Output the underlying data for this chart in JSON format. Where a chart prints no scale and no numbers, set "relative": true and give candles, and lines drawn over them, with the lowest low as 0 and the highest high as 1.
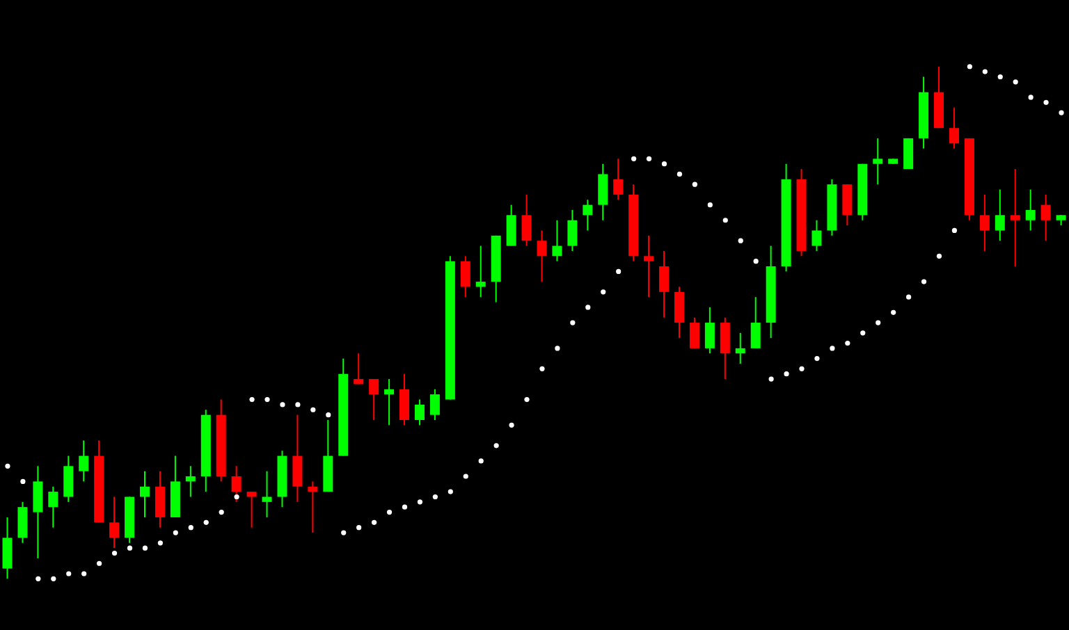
{
  "chart_data": {
    "type": "candlestick",
    "relative": true,
    "marker": "circle",
    "categories": [
      null,
      null,
      null,
      null,
      null,
      null,
      null,
      null,
      null,
      null,
      null,
      null,
      null,
      null,
      null,
      null,
      null,
      null,
      null,
      null,
      null,
      null,
      null,
      null,
      null,
      null,
      null,
      null,
      null,
      null,
      null,
      null,
      null,
      null,
      null,
      null,
      null,
      null,
      null,
      null,
      null,
      null,
      null,
      null,
      null,
      null,
      null,
      null,
      null,
      null,
      null,
      null,
      null,
      null,
      null,
      null,
      null,
      null,
      null,
      null,
      null,
      null,
      null,
      null,
      null,
      null,
      null,
      null,
      null,
      null
    ],
    "ohlc": [
      [
        0.02,
        0.12,
        0,
        0.08
      ],
      [
        0.08,
        0.15,
        0.07,
        0.14
      ],
      [
        0.13,
        0.22,
        0.04,
        0.19
      ],
      [
        0.14,
        0.18,
        0.1,
        0.17
      ],
      [
        0.16,
        0.24,
        0.15,
        0.22
      ],
      [
        0.21,
        0.27,
        0.19,
        0.24
      ],
      [
        0.24,
        0.27,
        0.11,
        0.11
      ],
      [
        0.11,
        0.16,
        0.06,
        0.08
      ],
      [
        0.08,
        0.16,
        0.07,
        0.16
      ],
      [
        0.16,
        0.21,
        0.12,
        0.18
      ],
      [
        0.18,
        0.21,
        0.1,
        0.12
      ],
      [
        0.12,
        0.24,
        0.12,
        0.19
      ],
      [
        0.19,
        0.22,
        0.16,
        0.2
      ],
      [
        0.2,
        0.33,
        0.17,
        0.32
      ],
      [
        0.32,
        0.35,
        0.19,
        0.2
      ],
      [
        0.2,
        0.22,
        0.15,
        0.17
      ],
      [
        0.17,
        0.17,
        0.1,
        0.16
      ],
      [
        0.15,
        0.21,
        0.12,
        0.16
      ],
      [
        0.16,
        0.25,
        0.14,
        0.24
      ],
      [
        0.24,
        0.32,
        0.15,
        0.18
      ],
      [
        0.18,
        0.19,
        0.09,
        0.17
      ],
      [
        0.17,
        0.31,
        0.17,
        0.24
      ],
      [
        0.24,
        0.43,
        0.24,
        0.4
      ],
      [
        0.39,
        0.44,
        0.38,
        0.38
      ],
      [
        0.39,
        0.39,
        0.31,
        0.36
      ],
      [
        0.36,
        0.39,
        0.3,
        0.37
      ],
      [
        0.37,
        0.4,
        0.3,
        0.31
      ],
      [
        0.31,
        0.35,
        0.3,
        0.34
      ],
      [
        0.32,
        0.37,
        0.31,
        0.36
      ],
      [
        0.35,
        0.63,
        0.35,
        0.62
      ],
      [
        0.62,
        0.63,
        0.55,
        0.57
      ],
      [
        0.57,
        0.65,
        0.55,
        0.58
      ],
      [
        0.58,
        0.67,
        0.54,
        0.67
      ],
      [
        0.65,
        0.73,
        0.65,
        0.71
      ],
      [
        0.71,
        0.75,
        0.65,
        0.66
      ],
      [
        0.66,
        0.68,
        0.58,
        0.63
      ],
      [
        0.63,
        0.7,
        0.62,
        0.65
      ],
      [
        0.65,
        0.72,
        0.64,
        0.7
      ],
      [
        0.71,
        0.74,
        0.68,
        0.73
      ],
      [
        0.73,
        0.81,
        0.7,
        0.79
      ],
      [
        0.78,
        0.82,
        0.74,
        0.75
      ],
      [
        0.75,
        0.77,
        0.62,
        0.63
      ],
      [
        0.63,
        0.67,
        0.55,
        0.62
      ],
      [
        0.61,
        0.64,
        0.51,
        0.56
      ],
      [
        0.56,
        0.57,
        0.47,
        0.5
      ],
      [
        0.5,
        0.51,
        0.45,
        0.45
      ],
      [
        0.45,
        0.53,
        0.44,
        0.5
      ],
      [
        0.5,
        0.51,
        0.39,
        0.44
      ],
      [
        0.44,
        0.48,
        0.42,
        0.45
      ],
      [
        0.45,
        0.55,
        0.45,
        0.5
      ],
      [
        0.5,
        0.65,
        0.47,
        0.61
      ],
      [
        0.61,
        0.81,
        0.6,
        0.78
      ],
      [
        0.78,
        0.8,
        0.63,
        0.64
      ],
      [
        0.65,
        0.7,
        0.64,
        0.68
      ],
      [
        0.68,
        0.78,
        0.67,
        0.77
      ],
      [
        0.77,
        0.77,
        0.69,
        0.71
      ],
      [
        0.71,
        0.81,
        0.7,
        0.81
      ],
      [
        0.81,
        0.86,
        0.77,
        0.82
      ],
      [
        0.81,
        0.82,
        0.81,
        0.82
      ],
      [
        0.8,
        0.86,
        0.8,
        0.86
      ],
      [
        0.86,
        0.98,
        0.84,
        0.95
      ],
      [
        0.95,
        1.0,
        0.88,
        0.88
      ],
      [
        0.88,
        0.92,
        0.84,
        0.85
      ],
      [
        0.86,
        0.86,
        0.7,
        0.71
      ],
      [
        0.71,
        0.75,
        0.64,
        0.68
      ],
      [
        0.68,
        0.76,
        0.66,
        0.71
      ],
      [
        0.71,
        0.8,
        0.61,
        0.7
      ],
      [
        0.7,
        0.76,
        0.68,
        0.72
      ],
      [
        0.73,
        0.75,
        0.66,
        0.7
      ],
      [
        0.7,
        0.71,
        0.69,
        0.71
      ]
    ],
    "colors": [
      "#00ff00",
      "#00ff00",
      "#00ff00",
      "#00ff00",
      "#00ff00",
      "#00ff00",
      "#ff0000",
      "#ff0000",
      "#00ff00",
      "#00ff00",
      "#ff0000",
      "#00ff00",
      "#00ff00",
      "#00ff00",
      "#ff0000",
      "#ff0000",
      "#ff0000",
      "#00ff00",
      "#00ff00",
      "#ff0000",
      "#ff0000",
      "#00ff00",
      "#00ff00",
      "#ff0000",
      "#ff0000",
      "#00ff00",
      "#ff0000",
      "#00ff00",
      "#00ff00",
      "#00ff00",
      "#ff0000",
      "#00ff00",
      "#00ff00",
      "#00ff00",
      "#ff0000",
      "#ff0000",
      "#00ff00",
      "#00ff00",
      "#00ff00",
      "#00ff00",
      "#ff0000",
      "#ff0000",
      "#ff0000",
      "#ff0000",
      "#ff0000",
      "#ff0000",
      "#00ff00",
      "#ff0000",
      "#00ff00",
      "#00ff00",
      "#00ff00",
      "#00ff00",
      "#ff0000",
      "#00ff00",
      "#00ff00",
      "#ff0000",
      "#00ff00",
      "#00ff00",
      "#00ff00",
      "#00ff00",
      "#00ff00",
      "#ff0000",
      "#ff0000",
      "#ff0000",
      "#ff0000",
      "#00ff00",
      "#ff0000",
      "#00ff00",
      "#ff0000",
      "#00ff00"
    ],
    "series": [
      {
        "type": "scatter",
        "color": "#ffffff",
        "values": [
          0.22,
          0.19,
          0,
          0,
          0.01,
          0.01,
          0.03,
          0.05,
          0.06,
          0.06,
          0.07,
          0.09,
          0.1,
          0.11,
          0.13,
          0.16,
          0.35,
          0.35,
          0.34,
          0.34,
          0.33,
          0.32,
          0.09,
          0.1,
          0.11,
          0.13,
          0.14,
          0.15,
          0.16,
          0.17,
          0.2,
          0.23,
          0.26,
          0.3,
          0.35,
          0.41,
          0.45,
          0.5,
          0.53,
          0.56,
          0.6,
          0.82,
          0.82,
          0.81,
          0.79,
          0.77,
          0.73,
          0.7,
          0.66,
          0.62,
          0.39,
          0.4,
          0.41,
          0.43,
          0.45,
          0.46,
          0.48,
          0.5,
          0.52,
          0.55,
          0.58,
          0.63,
          0.68,
          1.0,
          0.99,
          0.98,
          0.97,
          0.94,
          0.93,
          0.91
        ]
      }
    ]
  }
}
